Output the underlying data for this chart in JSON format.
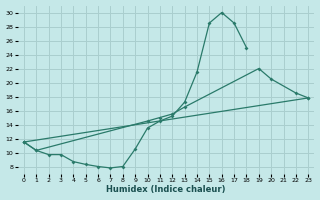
{
  "xlabel": "Humidex (Indice chaleur)",
  "bg_color": "#c5e8e8",
  "grid_color": "#aacece",
  "line_color": "#2a7a6a",
  "xlim": [
    -0.5,
    23.5
  ],
  "ylim": [
    7,
    31
  ],
  "xticks": [
    0,
    1,
    2,
    3,
    4,
    5,
    6,
    7,
    8,
    9,
    10,
    11,
    12,
    13,
    14,
    15,
    16,
    17,
    18,
    19,
    20,
    21,
    22,
    23
  ],
  "yticks": [
    8,
    10,
    12,
    14,
    16,
    18,
    20,
    22,
    24,
    26,
    28,
    30
  ],
  "line1_x": [
    0,
    1,
    2,
    3,
    4,
    5,
    6,
    7,
    8,
    9,
    10,
    11,
    12,
    13,
    14,
    15,
    16,
    17,
    18
  ],
  "line1_y": [
    11.5,
    10.3,
    9.7,
    9.7,
    8.7,
    8.3,
    8.0,
    7.8,
    8.0,
    10.5,
    13.5,
    14.5,
    15.2,
    17.2,
    21.5,
    28.5,
    30.0,
    28.5,
    25.0
  ],
  "line2_x": [
    0,
    1,
    10,
    11,
    12,
    13,
    19,
    20,
    22,
    23
  ],
  "line2_y": [
    11.5,
    10.3,
    14.5,
    15.0,
    15.5,
    16.5,
    22.0,
    20.5,
    18.5,
    17.8
  ],
  "line3_x": [
    0,
    23
  ],
  "line3_y": [
    11.5,
    17.8
  ]
}
